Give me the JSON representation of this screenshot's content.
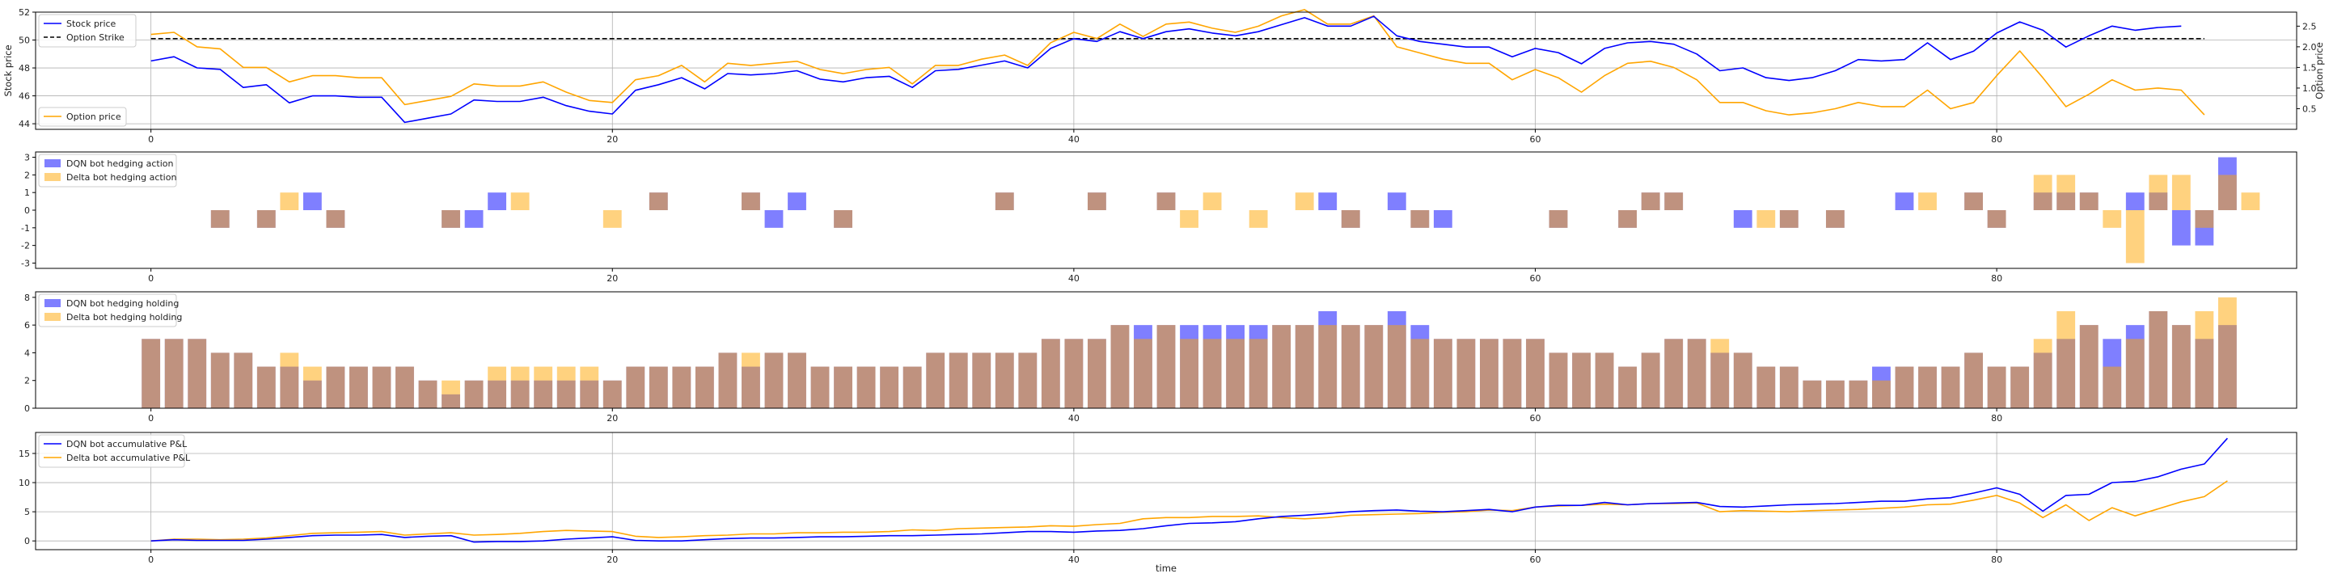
{
  "chart_data": [
    {
      "type": "line",
      "xlim": [
        -5,
        93
      ],
      "ylim": [
        43.6,
        52
      ],
      "y2lim": [
        0,
        2.84
      ],
      "yticks": [
        44,
        46,
        48,
        50,
        52
      ],
      "y2ticks": [
        0.5,
        1.0,
        1.5,
        2.0,
        2.5
      ],
      "xticks": [
        0,
        20,
        40,
        60,
        80
      ],
      "ylabel": "Stock price",
      "y2label": "Option price",
      "grid": true,
      "legend": "upper-left / lower-left",
      "stock_series": {
        "name": "Stock price",
        "color": "#0000ff",
        "values": [
          48.5,
          48.8,
          48.0,
          47.9,
          46.6,
          46.8,
          45.5,
          46.0,
          46.0,
          45.9,
          45.9,
          44.1,
          44.4,
          44.7,
          45.7,
          45.6,
          45.6,
          45.9,
          45.3,
          44.9,
          44.7,
          46.4,
          46.8,
          47.3,
          46.5,
          47.6,
          47.5,
          47.6,
          47.8,
          47.2,
          47.0,
          47.3,
          47.4,
          46.6,
          47.8,
          47.9,
          48.2,
          48.5,
          48.0,
          49.4,
          50.1,
          49.9,
          50.6,
          50.1,
          50.6,
          50.8,
          50.5,
          50.3,
          50.6,
          51.1,
          51.6,
          51.0,
          51.0,
          51.7,
          50.3,
          49.9,
          49.7,
          49.5,
          49.5,
          48.8,
          49.4,
          49.1,
          48.3,
          49.4,
          49.8,
          49.9,
          49.7,
          49.0,
          47.8,
          48.0,
          47.3,
          47.1,
          47.3,
          47.8,
          48.6,
          48.5,
          48.6,
          49.8,
          48.6,
          49.2,
          50.5,
          51.3,
          50.7,
          49.5,
          50.3,
          51.0,
          50.7,
          50.9,
          51.0,
          50.5
        ],
        "hide": [
          0,
          88
        ]
      },
      "strike_series": {
        "name": "Option Strike",
        "color": "#000000",
        "value": 50.1
      },
      "option_series": {
        "name": "Option price",
        "color": "#ffa500",
        "values": [
          2.3,
          2.35,
          2.0,
          1.95,
          1.5,
          1.5,
          1.15,
          1.3,
          1.3,
          1.25,
          1.25,
          0.6,
          0.7,
          0.8,
          1.1,
          1.05,
          1.05,
          1.15,
          0.9,
          0.7,
          0.65,
          1.2,
          1.3,
          1.55,
          1.15,
          1.6,
          1.55,
          1.6,
          1.65,
          1.45,
          1.35,
          1.45,
          1.5,
          1.1,
          1.55,
          1.55,
          1.7,
          1.8,
          1.55,
          2.1,
          2.35,
          2.2,
          2.55,
          2.25,
          2.55,
          2.6,
          2.45,
          2.35,
          2.5,
          2.75,
          2.9,
          2.55,
          2.55,
          2.75,
          2.0,
          1.85,
          1.7,
          1.6,
          1.6,
          1.2,
          1.45,
          1.25,
          0.9,
          1.3,
          1.6,
          1.65,
          1.5,
          1.2,
          0.65,
          0.65,
          0.45,
          0.35,
          0.4,
          0.5,
          0.65,
          0.55,
          0.55,
          0.95,
          0.5,
          0.65,
          1.3,
          1.9,
          1.25,
          0.55,
          0.85,
          1.2,
          0.95,
          1.0,
          0.95,
          0.35
        ]
      }
    },
    {
      "type": "bar",
      "ylim": [
        -3.3,
        3.3
      ],
      "yticks": [
        -3,
        -2,
        -1,
        0,
        1,
        2,
        3
      ],
      "xticks": [
        0,
        20,
        40,
        60,
        80
      ],
      "legend": "upper-left",
      "series": [
        {
          "name": "DQN bot hedging action",
          "color": "#0000ff",
          "values": [
            0,
            0,
            0,
            -1,
            0,
            -1,
            0,
            1,
            -1,
            0,
            0,
            0,
            0,
            -1,
            -1,
            1,
            0,
            0,
            0,
            0,
            0,
            0,
            1,
            0,
            0,
            0,
            1,
            -1,
            1,
            0,
            -1,
            0,
            0,
            0,
            0,
            0,
            0,
            1,
            0,
            0,
            0,
            1,
            0,
            0,
            1,
            0,
            0,
            0,
            0,
            0,
            0,
            1,
            -1,
            0,
            1,
            -1,
            -1,
            0,
            0,
            0,
            0,
            -1,
            0,
            0,
            -1,
            1,
            1,
            0,
            0,
            -1,
            0,
            -1,
            0,
            -1,
            0,
            0,
            1,
            0,
            0,
            1,
            -1,
            0,
            1,
            1,
            1,
            0,
            1,
            1,
            -2,
            -2,
            3
          ]
        },
        {
          "name": "Delta bot hedging action",
          "color": "#ffa500",
          "values": [
            0,
            0,
            0,
            -1,
            0,
            -1,
            1,
            0,
            -1,
            0,
            0,
            0,
            0,
            -1,
            0,
            0,
            1,
            0,
            0,
            0,
            -1,
            0,
            1,
            0,
            0,
            0,
            1,
            0,
            0,
            0,
            -1,
            0,
            0,
            0,
            0,
            0,
            0,
            1,
            0,
            0,
            0,
            1,
            0,
            0,
            1,
            -1,
            1,
            0,
            -1,
            0,
            1,
            0,
            -1,
            0,
            0,
            -1,
            0,
            0,
            0,
            0,
            0,
            -1,
            0,
            0,
            -1,
            1,
            1,
            0,
            0,
            0,
            -1,
            -1,
            0,
            -1,
            0,
            0,
            0,
            1,
            0,
            1,
            -1,
            0,
            2,
            2,
            1,
            -1,
            -3,
            2,
            2,
            -1,
            2,
            1
          ]
        }
      ]
    },
    {
      "type": "bar",
      "ylim": [
        0,
        8.4
      ],
      "yticks": [
        0,
        2,
        4,
        6,
        8
      ],
      "xticks": [
        0,
        20,
        40,
        60,
        80
      ],
      "legend": "upper-left",
      "series": [
        {
          "name": "DQN bot hedging holding",
          "color": "#0000ff",
          "values": [
            5,
            5,
            5,
            4,
            4,
            3,
            3,
            2,
            3,
            3,
            3,
            3,
            2,
            1,
            2,
            2,
            2,
            2,
            2,
            2,
            2,
            3,
            3,
            3,
            3,
            4,
            3,
            4,
            4,
            3,
            3,
            3,
            3,
            3,
            4,
            4,
            4,
            4,
            4,
            5,
            5,
            5,
            6,
            6,
            6,
            6,
            6,
            6,
            6,
            6,
            6,
            7,
            6,
            6,
            7,
            6,
            5,
            5,
            5,
            5,
            5,
            4,
            4,
            4,
            3,
            4,
            5,
            5,
            4,
            4,
            3,
            3,
            2,
            2,
            2,
            3,
            3,
            3,
            3,
            4,
            3,
            3,
            4,
            5,
            6,
            5,
            6,
            7,
            6,
            5,
            6
          ]
        },
        {
          "name": "Delta bot hedging holding",
          "color": "#ffa500",
          "values": [
            5,
            5,
            5,
            4,
            4,
            3,
            4,
            3,
            3,
            3,
            3,
            3,
            2,
            2,
            2,
            3,
            3,
            3,
            3,
            3,
            2,
            3,
            3,
            3,
            3,
            4,
            4,
            4,
            4,
            3,
            3,
            3,
            3,
            3,
            4,
            4,
            4,
            4,
            4,
            5,
            5,
            5,
            6,
            5,
            6,
            5,
            5,
            5,
            5,
            6,
            6,
            6,
            6,
            6,
            6,
            5,
            5,
            5,
            5,
            5,
            5,
            4,
            4,
            4,
            3,
            4,
            5,
            5,
            5,
            4,
            3,
            3,
            2,
            2,
            2,
            2,
            3,
            3,
            3,
            4,
            3,
            3,
            5,
            7,
            6,
            3,
            5,
            7,
            6,
            7,
            8
          ]
        }
      ]
    },
    {
      "type": "line",
      "xlim": [
        -5,
        93
      ],
      "ylim": [
        -1.5,
        18.6
      ],
      "yticks": [
        0,
        5,
        10,
        15
      ],
      "xticks": [
        0,
        20,
        40,
        60,
        80
      ],
      "xlabel": "time",
      "grid": true,
      "legend": "upper-left",
      "series": [
        {
          "name": "DQN bot accumulative P&L",
          "color": "#0000ff",
          "values": [
            0,
            0.2,
            0.1,
            0.1,
            0.1,
            0.3,
            0.6,
            0.9,
            1.0,
            1.0,
            1.1,
            0.6,
            0.8,
            0.9,
            -0.2,
            -0.1,
            -0.1,
            0,
            0.3,
            0.5,
            0.7,
            0.1,
            0,
            0,
            0.2,
            0.4,
            0.5,
            0.5,
            0.6,
            0.7,
            0.7,
            0.8,
            0.9,
            0.9,
            1.0,
            1.1,
            1.2,
            1.4,
            1.6,
            1.6,
            1.5,
            1.7,
            1.8,
            2.1,
            2.6,
            3.0,
            3.1,
            3.3,
            3.8,
            4.2,
            4.4,
            4.7,
            5.0,
            5.2,
            5.3,
            5.1,
            5.0,
            5.2,
            5.4,
            5.0,
            5.8,
            6.1,
            6.1,
            6.6,
            6.2,
            6.4,
            6.5,
            6.6,
            5.9,
            5.8,
            6.0,
            6.2,
            6.3,
            6.4,
            6.6,
            6.8,
            6.8,
            7.2,
            7.4,
            8.2,
            9.1,
            8.0,
            5.1,
            7.8,
            8.0,
            10.0,
            10.2,
            11.0,
            12.3,
            13.2,
            17.6
          ]
        },
        {
          "name": "Delta bot accumulative P&L",
          "color": "#ffa500",
          "values": [
            0,
            0.3,
            0.3,
            0.2,
            0.3,
            0.5,
            0.9,
            1.3,
            1.4,
            1.5,
            1.6,
            1.0,
            1.2,
            1.4,
            1.0,
            1.1,
            1.3,
            1.6,
            1.8,
            1.7,
            1.6,
            0.8,
            0.6,
            0.7,
            0.9,
            1.0,
            1.2,
            1.2,
            1.4,
            1.4,
            1.5,
            1.5,
            1.6,
            1.9,
            1.8,
            2.1,
            2.2,
            2.3,
            2.4,
            2.6,
            2.5,
            2.8,
            3.0,
            3.8,
            4.0,
            4.0,
            4.2,
            4.2,
            4.3,
            4.0,
            3.8,
            4.0,
            4.4,
            4.5,
            4.6,
            4.7,
            4.9,
            5.0,
            5.3,
            5.2,
            5.8,
            6.0,
            6.1,
            6.3,
            6.2,
            6.4,
            6.4,
            6.5,
            5.0,
            5.2,
            5.1,
            5.0,
            5.2,
            5.3,
            5.4,
            5.6,
            5.8,
            6.2,
            6.3,
            7.0,
            7.8,
            6.5,
            4.0,
            6.2,
            3.5,
            5.7,
            4.3,
            5.5,
            6.7,
            7.6,
            10.3
          ]
        }
      ]
    }
  ]
}
